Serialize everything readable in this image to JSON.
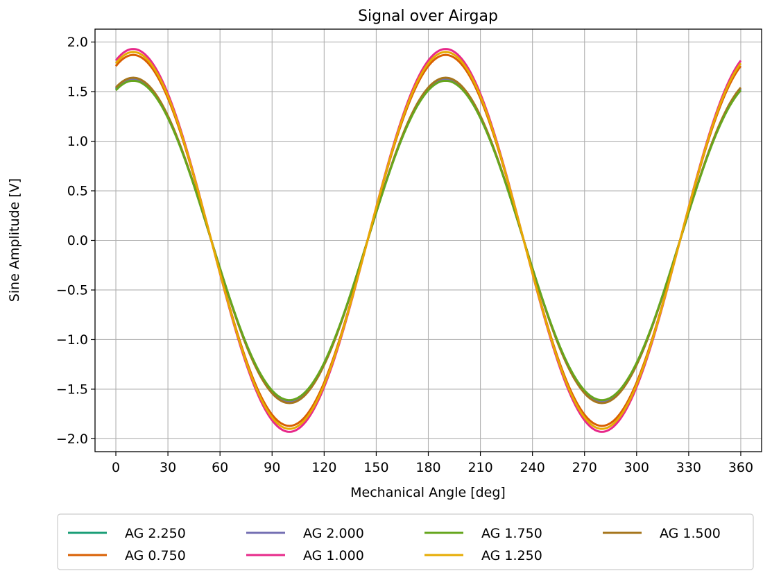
{
  "chart_data": {
    "type": "line",
    "title": "Signal over Airgap",
    "xlabel": "Mechanical Angle [deg]",
    "ylabel": "Sine Amplitude [V]",
    "xlim": [
      -12,
      372
    ],
    "ylim": [
      -2.13,
      2.13
    ],
    "xticks": [
      0,
      30,
      60,
      90,
      120,
      150,
      180,
      210,
      240,
      270,
      300,
      330,
      360
    ],
    "yticks": [
      -2.0,
      -1.5,
      -1.0,
      -0.5,
      0.0,
      0.5,
      1.0,
      1.5,
      2.0
    ],
    "ytick_labels": [
      "−2.0",
      "−1.5",
      "−1.0",
      "−0.5",
      "0.0",
      "0.5",
      "1.0",
      "1.5",
      "2.0"
    ],
    "grid": true,
    "legend_placement": "below",
    "x_range": [
      0,
      360
    ],
    "period_deg": 180,
    "peak_angle_deg": 10,
    "series": [
      {
        "name": "AG 2.250",
        "color": "#1b9e77",
        "amplitude": 1.62
      },
      {
        "name": "AG 0.750",
        "color": "#d95f02",
        "amplitude": 1.87
      },
      {
        "name": "AG 2.000",
        "color": "#7570b3",
        "amplitude": 1.63
      },
      {
        "name": "AG 1.000",
        "color": "#e7298a",
        "amplitude": 1.93
      },
      {
        "name": "AG 1.750",
        "color": "#66a61e",
        "amplitude": 1.61
      },
      {
        "name": "AG 1.250",
        "color": "#e6ab02",
        "amplitude": 1.9
      },
      {
        "name": "AG 1.500",
        "color": "#a6761d",
        "amplitude": 1.64
      }
    ],
    "draw_order": [
      "AG 2.250",
      "AG 2.000",
      "AG 1.500",
      "AG 1.750",
      "AG 1.000",
      "AG 0.750",
      "AG 1.250"
    ],
    "legend_order": [
      "AG 2.250",
      "AG 2.000",
      "AG 1.750",
      "AG 1.500",
      "AG 0.750",
      "AG 1.000",
      "AG 1.250"
    ]
  }
}
